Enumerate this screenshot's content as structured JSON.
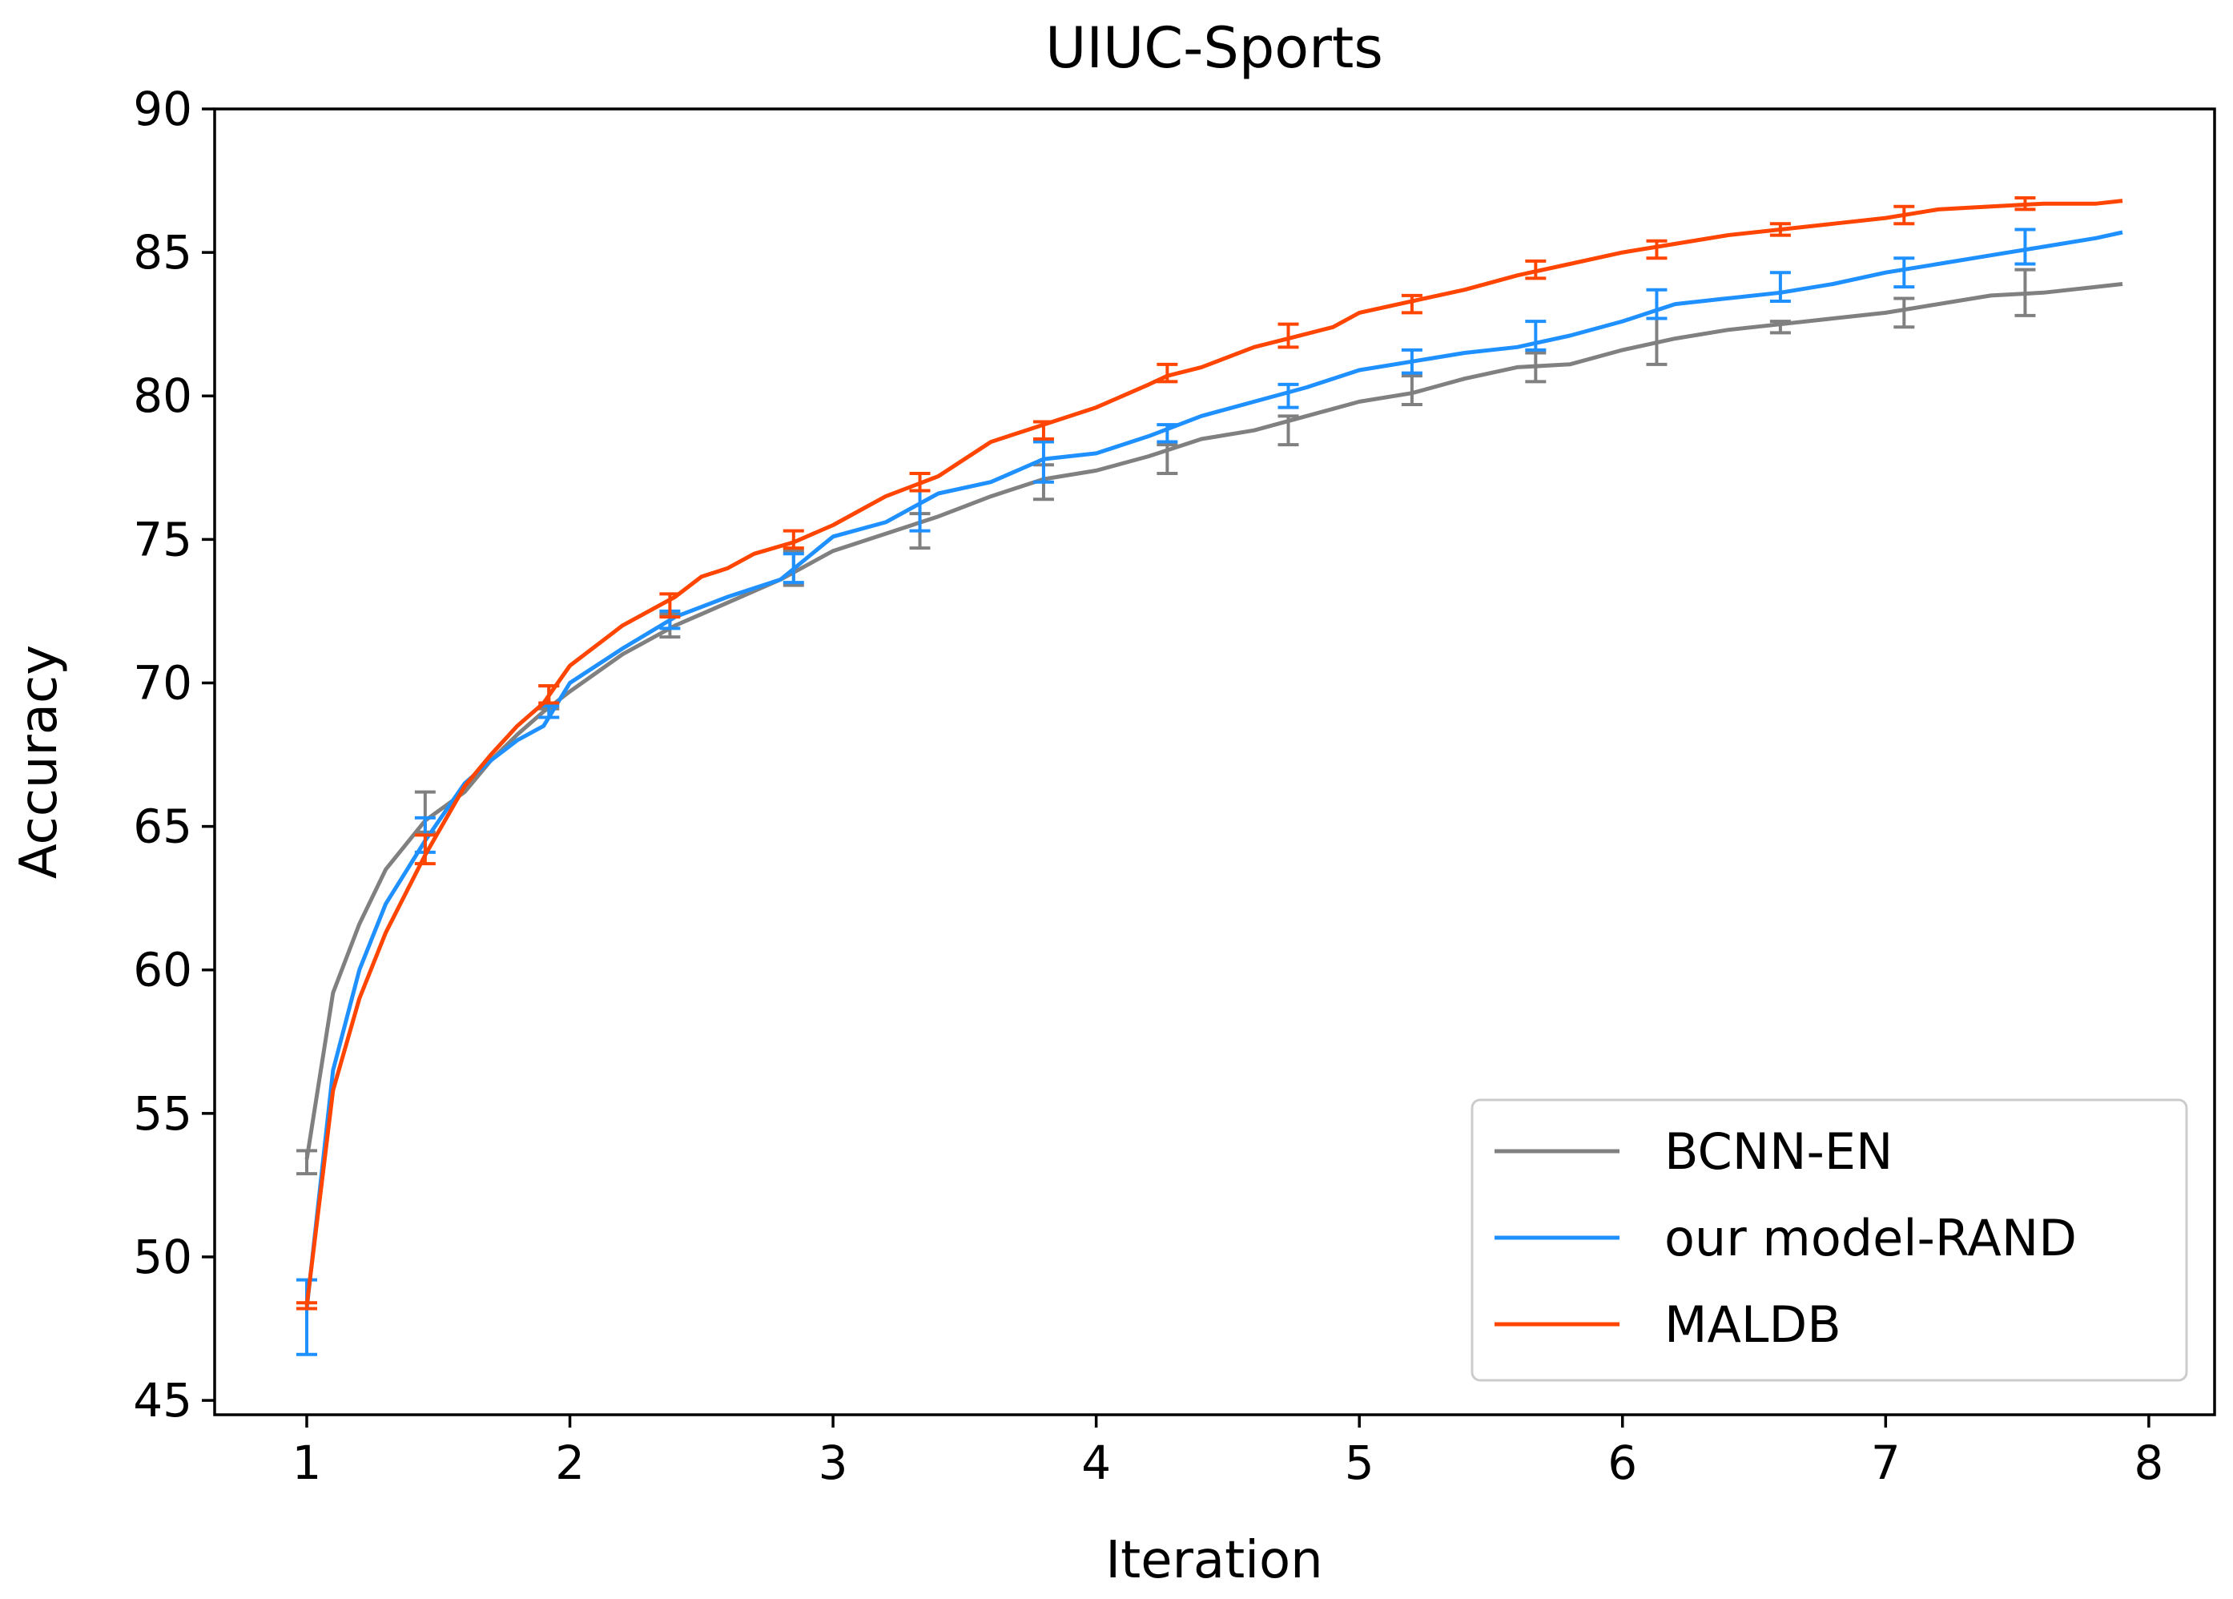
{
  "chart_data": {
    "type": "line",
    "title": "UIUC-Sports",
    "xlabel": "Iteration",
    "ylabel": "Accuracy",
    "xlim": [
      0.65,
      8.25
    ],
    "ylim": [
      44.5,
      90
    ],
    "xticks": [
      1,
      2,
      3,
      4,
      5,
      6,
      7,
      8
    ],
    "yticks": [
      45,
      50,
      55,
      60,
      65,
      70,
      75,
      80,
      85,
      90
    ],
    "grid": false,
    "legend_position": "lower-right",
    "series": [
      {
        "name": "BCNN-EN",
        "color": "#808080",
        "x": [
          1.0,
          1.1,
          1.2,
          1.3,
          1.45,
          1.6,
          1.7,
          1.8,
          1.9,
          2.0,
          2.2,
          2.4,
          2.6,
          2.8,
          3.0,
          3.2,
          3.4,
          3.6,
          3.8,
          4.0,
          4.2,
          4.4,
          4.6,
          4.8,
          5.0,
          5.2,
          5.4,
          5.6,
          5.8,
          6.0,
          6.2,
          6.4,
          6.6,
          6.8,
          7.0,
          7.2,
          7.4,
          7.6,
          7.8,
          7.9
        ],
        "y": [
          53.4,
          59.2,
          61.6,
          63.5,
          65.2,
          66.2,
          67.3,
          68.2,
          69.0,
          69.7,
          71.0,
          72.0,
          72.8,
          73.6,
          74.6,
          75.2,
          75.8,
          76.5,
          77.1,
          77.4,
          77.9,
          78.5,
          78.8,
          79.3,
          79.8,
          80.1,
          80.6,
          81.0,
          81.1,
          81.6,
          82.0,
          82.3,
          82.5,
          82.7,
          82.9,
          83.2,
          83.5,
          83.6,
          83.8,
          83.9
        ],
        "errorbars": [
          {
            "x": 1.0,
            "y": 53.3,
            "err": 0.4
          },
          {
            "x": 1.45,
            "y": 65.5,
            "err": 0.7
          },
          {
            "x": 1.92,
            "y": 69.5,
            "err": 0.4
          },
          {
            "x": 2.38,
            "y": 72.0,
            "err": 0.4
          },
          {
            "x": 2.85,
            "y": 74.0,
            "err": 0.6
          },
          {
            "x": 3.33,
            "y": 75.3,
            "err": 0.6
          },
          {
            "x": 3.8,
            "y": 77.0,
            "err": 0.6
          },
          {
            "x": 4.27,
            "y": 77.8,
            "err": 0.5
          },
          {
            "x": 4.73,
            "y": 78.8,
            "err": 0.5
          },
          {
            "x": 5.2,
            "y": 80.2,
            "err": 0.5
          },
          {
            "x": 5.67,
            "y": 81.0,
            "err": 0.5
          },
          {
            "x": 6.13,
            "y": 81.9,
            "err": 0.8
          },
          {
            "x": 6.6,
            "y": 82.4,
            "err": 0.2
          },
          {
            "x": 7.07,
            "y": 82.9,
            "err": 0.5
          },
          {
            "x": 7.53,
            "y": 83.6,
            "err": 0.8
          }
        ]
      },
      {
        "name": "our model-RAND",
        "color": "#1e90ff",
        "x": [
          1.0,
          1.1,
          1.2,
          1.3,
          1.45,
          1.6,
          1.7,
          1.8,
          1.9,
          2.0,
          2.2,
          2.4,
          2.6,
          2.8,
          3.0,
          3.2,
          3.4,
          3.6,
          3.8,
          4.0,
          4.2,
          4.4,
          4.6,
          4.8,
          5.0,
          5.2,
          5.4,
          5.6,
          5.8,
          6.0,
          6.2,
          6.4,
          6.6,
          6.8,
          7.0,
          7.2,
          7.4,
          7.6,
          7.8,
          7.9
        ],
        "y": [
          48.2,
          56.5,
          60.0,
          62.3,
          64.5,
          66.5,
          67.3,
          68.0,
          68.5,
          70.0,
          71.2,
          72.3,
          73.0,
          73.6,
          75.1,
          75.6,
          76.6,
          77.0,
          77.8,
          78.0,
          78.6,
          79.3,
          79.8,
          80.3,
          80.9,
          81.2,
          81.5,
          81.7,
          82.1,
          82.6,
          83.2,
          83.4,
          83.6,
          83.9,
          84.3,
          84.6,
          84.9,
          85.2,
          85.5,
          85.7
        ],
        "errorbars": [
          {
            "x": 1.0,
            "y": 47.9,
            "err": 1.3
          },
          {
            "x": 1.45,
            "y": 64.7,
            "err": 0.6
          },
          {
            "x": 1.92,
            "y": 69.0,
            "err": 0.2
          },
          {
            "x": 2.38,
            "y": 72.2,
            "err": 0.3
          },
          {
            "x": 2.85,
            "y": 74.0,
            "err": 0.5
          },
          {
            "x": 3.33,
            "y": 76.0,
            "err": 0.7
          },
          {
            "x": 3.8,
            "y": 77.7,
            "err": 0.7
          },
          {
            "x": 4.27,
            "y": 78.7,
            "err": 0.3
          },
          {
            "x": 4.73,
            "y": 80.0,
            "err": 0.4
          },
          {
            "x": 5.2,
            "y": 81.2,
            "err": 0.4
          },
          {
            "x": 5.67,
            "y": 82.1,
            "err": 0.5
          },
          {
            "x": 6.13,
            "y": 83.2,
            "err": 0.5
          },
          {
            "x": 6.6,
            "y": 83.8,
            "err": 0.5
          },
          {
            "x": 7.07,
            "y": 84.3,
            "err": 0.5
          },
          {
            "x": 7.53,
            "y": 85.2,
            "err": 0.6
          }
        ]
      },
      {
        "name": "MALDB",
        "color": "#ff4500",
        "x": [
          1.0,
          1.1,
          1.2,
          1.3,
          1.45,
          1.6,
          1.7,
          1.8,
          1.9,
          2.0,
          2.2,
          2.4,
          2.5,
          2.6,
          2.7,
          2.85,
          3.0,
          3.1,
          3.2,
          3.4,
          3.6,
          3.8,
          4.0,
          4.2,
          4.27,
          4.4,
          4.6,
          4.73,
          4.9,
          5.0,
          5.2,
          5.4,
          5.6,
          5.8,
          6.0,
          6.2,
          6.4,
          6.6,
          6.8,
          7.0,
          7.2,
          7.4,
          7.6,
          7.8,
          7.9
        ],
        "y": [
          48.3,
          55.8,
          59.0,
          61.3,
          64.0,
          66.4,
          67.5,
          68.5,
          69.3,
          70.6,
          72.0,
          73.0,
          73.7,
          74.0,
          74.5,
          74.9,
          75.5,
          76.0,
          76.5,
          77.2,
          78.4,
          79.0,
          79.6,
          80.4,
          80.7,
          81.0,
          81.7,
          82.0,
          82.4,
          82.9,
          83.3,
          83.7,
          84.2,
          84.6,
          85.0,
          85.3,
          85.6,
          85.8,
          86.0,
          86.2,
          86.5,
          86.6,
          86.7,
          86.7,
          86.8
        ],
        "errorbars": [
          {
            "x": 1.0,
            "y": 48.3,
            "err": 0.1
          },
          {
            "x": 1.45,
            "y": 64.2,
            "err": 0.5
          },
          {
            "x": 1.92,
            "y": 69.6,
            "err": 0.3
          },
          {
            "x": 2.38,
            "y": 72.7,
            "err": 0.4
          },
          {
            "x": 2.85,
            "y": 75.0,
            "err": 0.3
          },
          {
            "x": 3.33,
            "y": 77.0,
            "err": 0.3
          },
          {
            "x": 3.8,
            "y": 78.8,
            "err": 0.3
          },
          {
            "x": 4.27,
            "y": 80.8,
            "err": 0.3
          },
          {
            "x": 4.73,
            "y": 82.1,
            "err": 0.4
          },
          {
            "x": 5.2,
            "y": 83.2,
            "err": 0.3
          },
          {
            "x": 5.67,
            "y": 84.4,
            "err": 0.3
          },
          {
            "x": 6.13,
            "y": 85.1,
            "err": 0.3
          },
          {
            "x": 6.6,
            "y": 85.8,
            "err": 0.2
          },
          {
            "x": 7.07,
            "y": 86.3,
            "err": 0.3
          },
          {
            "x": 7.53,
            "y": 86.7,
            "err": 0.2
          }
        ]
      }
    ]
  }
}
